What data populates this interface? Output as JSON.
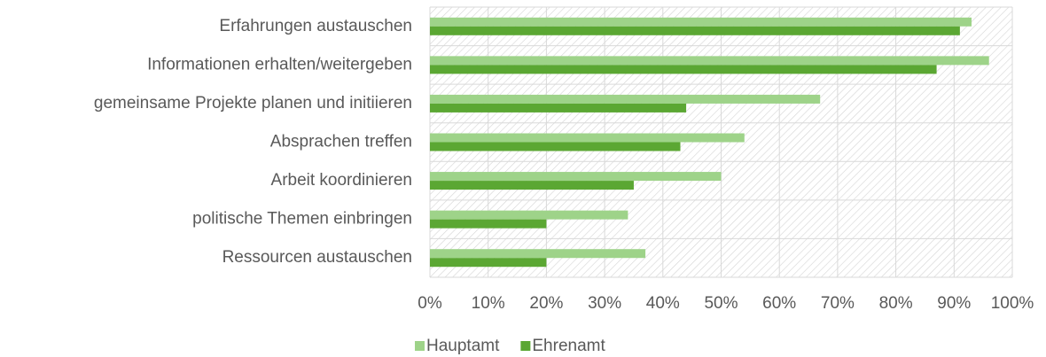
{
  "chart_data": {
    "type": "bar",
    "orientation": "horizontal",
    "categories": [
      "Erfahrungen austauschen",
      "Informationen erhalten/weitergeben",
      "gemeinsame Projekte planen und initiieren",
      "Absprachen treffen",
      "Arbeit koordinieren",
      "politische Themen einbringen",
      "Ressourcen austauschen"
    ],
    "series": [
      {
        "name": "Hauptamt",
        "color": "#9ed389",
        "values": [
          93,
          96,
          67,
          54,
          50,
          34,
          37
        ]
      },
      {
        "name": "Ehrenamt",
        "color": "#5ba733",
        "values": [
          91,
          87,
          44,
          43,
          35,
          20,
          20
        ]
      }
    ],
    "xlim": [
      0,
      100
    ],
    "xticks": [
      {
        "value": 0,
        "label": "0%"
      },
      {
        "value": 10,
        "label": "10%"
      },
      {
        "value": 20,
        "label": "20%"
      },
      {
        "value": 30,
        "label": "30%"
      },
      {
        "value": 40,
        "label": "40%"
      },
      {
        "value": 50,
        "label": "50%"
      },
      {
        "value": 60,
        "label": "60%"
      },
      {
        "value": 70,
        "label": "70%"
      },
      {
        "value": 80,
        "label": "80%"
      },
      {
        "value": 90,
        "label": "90%"
      },
      {
        "value": 100,
        "label": "100%"
      }
    ],
    "grid": true,
    "legend": "bottom"
  }
}
